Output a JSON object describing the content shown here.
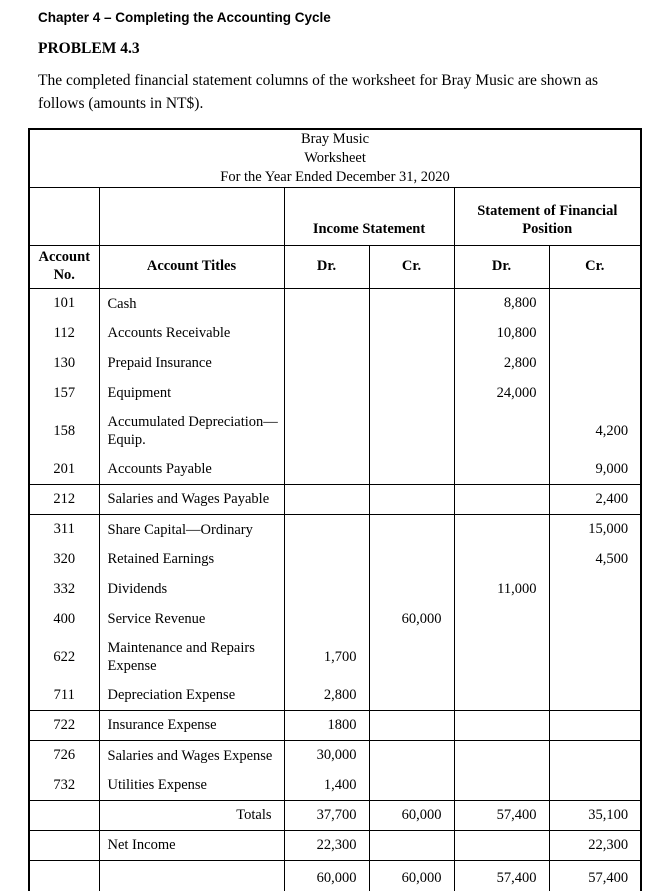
{
  "page": {
    "chapter_heading": "Chapter 4 – Completing the Accounting Cycle",
    "problem_title": "PROBLEM 4.3",
    "intro": "The completed financial statement columns of the worksheet for Bray Music are shown as follows (amounts in NT$)."
  },
  "worksheet": {
    "title_lines": [
      "Bray Music",
      "Worksheet",
      "For the Year Ended December 31, 2020"
    ],
    "group_headers": [
      "Income Statement",
      "Statement of Financial Position"
    ],
    "column_headers": [
      "Account No.",
      "Account Titles",
      "Dr.",
      "Cr.",
      "Dr.",
      "Cr."
    ],
    "rows": [
      {
        "no": "101",
        "title": "Cash",
        "is_dr": "",
        "is_cr": "",
        "fp_dr": "8,800",
        "fp_cr": ""
      },
      {
        "no": "112",
        "title": "Accounts Receivable",
        "is_dr": "",
        "is_cr": "",
        "fp_dr": "10,800",
        "fp_cr": ""
      },
      {
        "no": "130",
        "title": "Prepaid Insurance",
        "is_dr": "",
        "is_cr": "",
        "fp_dr": "2,800",
        "fp_cr": ""
      },
      {
        "no": "157",
        "title": "Equipment",
        "is_dr": "",
        "is_cr": "",
        "fp_dr": "24,000",
        "fp_cr": ""
      },
      {
        "no": "158",
        "title": "Accumulated Depreciation—Equip.",
        "is_dr": "",
        "is_cr": "",
        "fp_dr": "",
        "fp_cr": "4,200",
        "tall": true
      },
      {
        "no": "201",
        "title": "Accounts Payable",
        "is_dr": "",
        "is_cr": "",
        "fp_dr": "",
        "fp_cr": "9,000",
        "rule_below": true
      },
      {
        "no": "212",
        "title": "Salaries and Wages Payable",
        "is_dr": "",
        "is_cr": "",
        "fp_dr": "",
        "fp_cr": "2,400",
        "rule_below": true
      },
      {
        "no": "311",
        "title": "Share Capital—Ordinary",
        "is_dr": "",
        "is_cr": "",
        "fp_dr": "",
        "fp_cr": "15,000"
      },
      {
        "no": "320",
        "title": "Retained Earnings",
        "is_dr": "",
        "is_cr": "",
        "fp_dr": "",
        "fp_cr": "4,500"
      },
      {
        "no": "332",
        "title": "Dividends",
        "is_dr": "",
        "is_cr": "",
        "fp_dr": "11,000",
        "fp_cr": ""
      },
      {
        "no": "400",
        "title": "Service Revenue",
        "is_dr": "",
        "is_cr": "60,000",
        "fp_dr": "",
        "fp_cr": ""
      },
      {
        "no": "622",
        "title": "Maintenance and Repairs Expense",
        "is_dr": "1,700",
        "is_cr": "",
        "fp_dr": "",
        "fp_cr": "",
        "tall": true
      },
      {
        "no": "711",
        "title": "Depreciation Expense",
        "is_dr": "2,800",
        "is_cr": "",
        "fp_dr": "",
        "fp_cr": "",
        "rule_below": true
      },
      {
        "no": "722",
        "title": "Insurance Expense",
        "is_dr": "1800",
        "is_cr": "",
        "fp_dr": "",
        "fp_cr": "",
        "rule_below": true
      },
      {
        "no": "726",
        "title": "Salaries and Wages Expense",
        "is_dr": "30,000",
        "is_cr": "",
        "fp_dr": "",
        "fp_cr": ""
      },
      {
        "no": "732",
        "title": "Utilities Expense",
        "is_dr": "1,400",
        "is_cr": "",
        "fp_dr": "",
        "fp_cr": "",
        "rule_below": true
      },
      {
        "no": "",
        "title": "Totals",
        "is_dr": "37,700",
        "is_cr": "60,000",
        "fp_dr": "57,400",
        "fp_cr": "35,100",
        "label_right": true,
        "rule_below": true
      },
      {
        "no": "",
        "title": "Net Income",
        "is_dr": "22,300",
        "is_cr": "",
        "fp_dr": "",
        "fp_cr": "22,300",
        "rule_below": true
      },
      {
        "no": "",
        "title": "",
        "is_dr": "60,000",
        "is_cr": "60,000",
        "fp_dr": "57,400",
        "fp_cr": "57,400",
        "final": true
      }
    ]
  }
}
